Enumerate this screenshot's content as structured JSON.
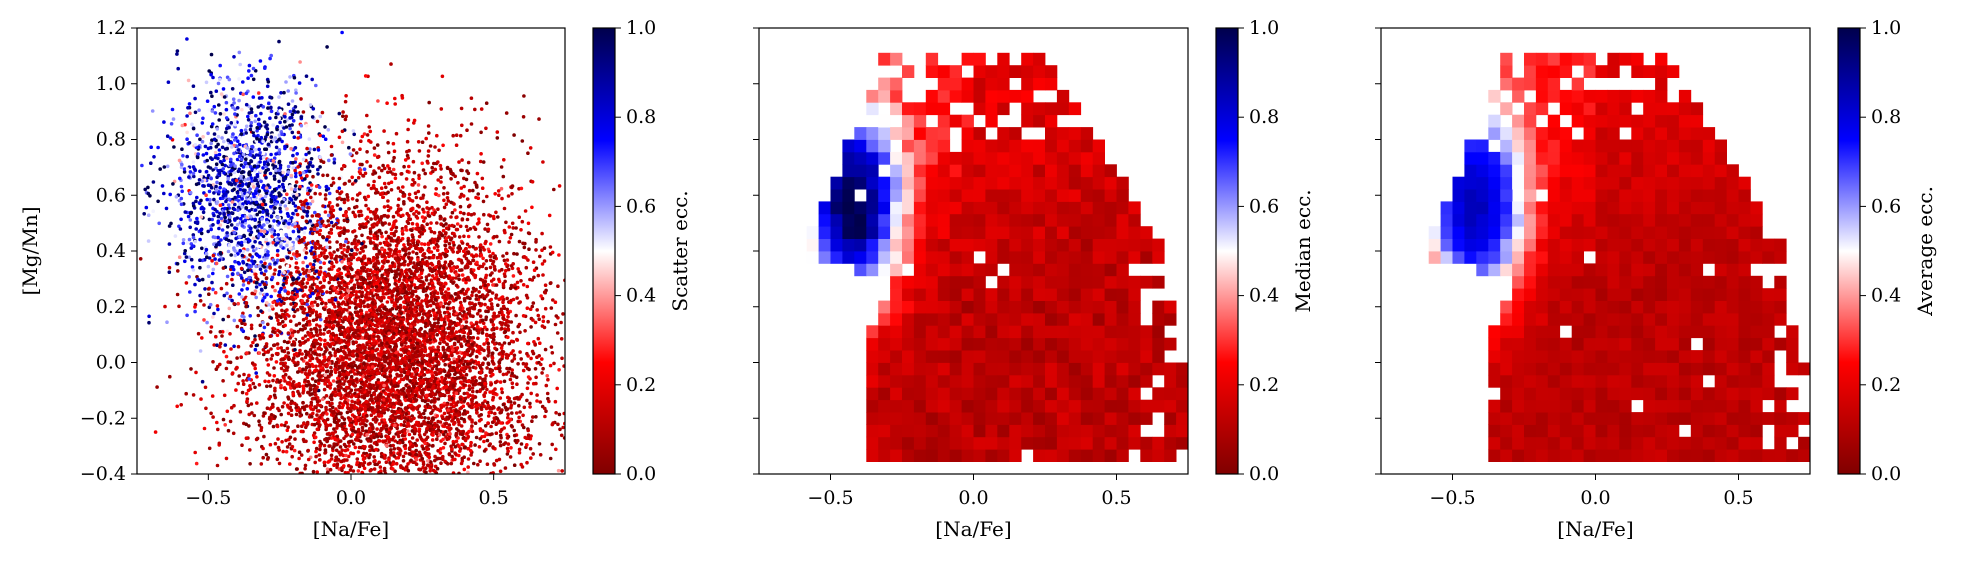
{
  "chart_data": [
    {
      "type": "scatter",
      "panel": "left",
      "xlabel": "[Na/Fe]",
      "ylabel": "[Mg/Mn]",
      "xlim": [
        -0.75,
        0.75
      ],
      "ylim": [
        -0.4,
        1.2
      ],
      "xticks": [
        "−0.5",
        "0.0",
        "0.5"
      ],
      "yticks": [
        "−0.4",
        "−0.2",
        "0.0",
        "0.2",
        "0.4",
        "0.6",
        "0.8",
        "1.0",
        "1.2"
      ],
      "colorbar": {
        "label": "Scatter ecc.",
        "range": [
          0.0,
          1.0
        ],
        "ticks": [
          "0.0",
          "0.2",
          "0.4",
          "0.6",
          "0.8",
          "1.0"
        ],
        "colormap": "seismic_r"
      },
      "description_of_data": {
        "main_population": {
          "center": [
            0.15,
            0.05
          ],
          "eccentricity": 0.1,
          "spread": [
            0.25,
            0.35
          ]
        },
        "high_ecc_group": {
          "center": [
            -0.4,
            0.6
          ],
          "eccentricity": 0.9,
          "spread": [
            0.1,
            0.2
          ]
        },
        "n_points_approx": 9000
      }
    },
    {
      "type": "heatmap",
      "panel": "middle",
      "xlabel": "[Na/Fe]",
      "xlim": [
        -0.75,
        0.75
      ],
      "ylim": [
        -0.4,
        1.2
      ],
      "xticks": [
        "−0.5",
        "0.0",
        "0.5"
      ],
      "colorbar": {
        "label": "Median ecc.",
        "range": [
          0.0,
          1.0
        ],
        "ticks": [
          "0.0",
          "0.2",
          "0.4",
          "0.6",
          "0.8",
          "1.0"
        ],
        "colormap": "seismic_r"
      },
      "bins": {
        "nx": 36,
        "ny": 36
      },
      "statistic": "median"
    },
    {
      "type": "heatmap",
      "panel": "right",
      "xlabel": "[Na/Fe]",
      "xlim": [
        -0.75,
        0.75
      ],
      "ylim": [
        -0.4,
        1.2
      ],
      "xticks": [
        "−0.5",
        "0.0",
        "0.5"
      ],
      "colorbar": {
        "label": "Average ecc.",
        "range": [
          0.0,
          1.0
        ],
        "ticks": [
          "0.0",
          "0.2",
          "0.4",
          "0.6",
          "0.8",
          "1.0"
        ],
        "colormap": "seismic_r"
      },
      "bins": {
        "nx": 36,
        "ny": 36
      },
      "statistic": "mean"
    }
  ]
}
